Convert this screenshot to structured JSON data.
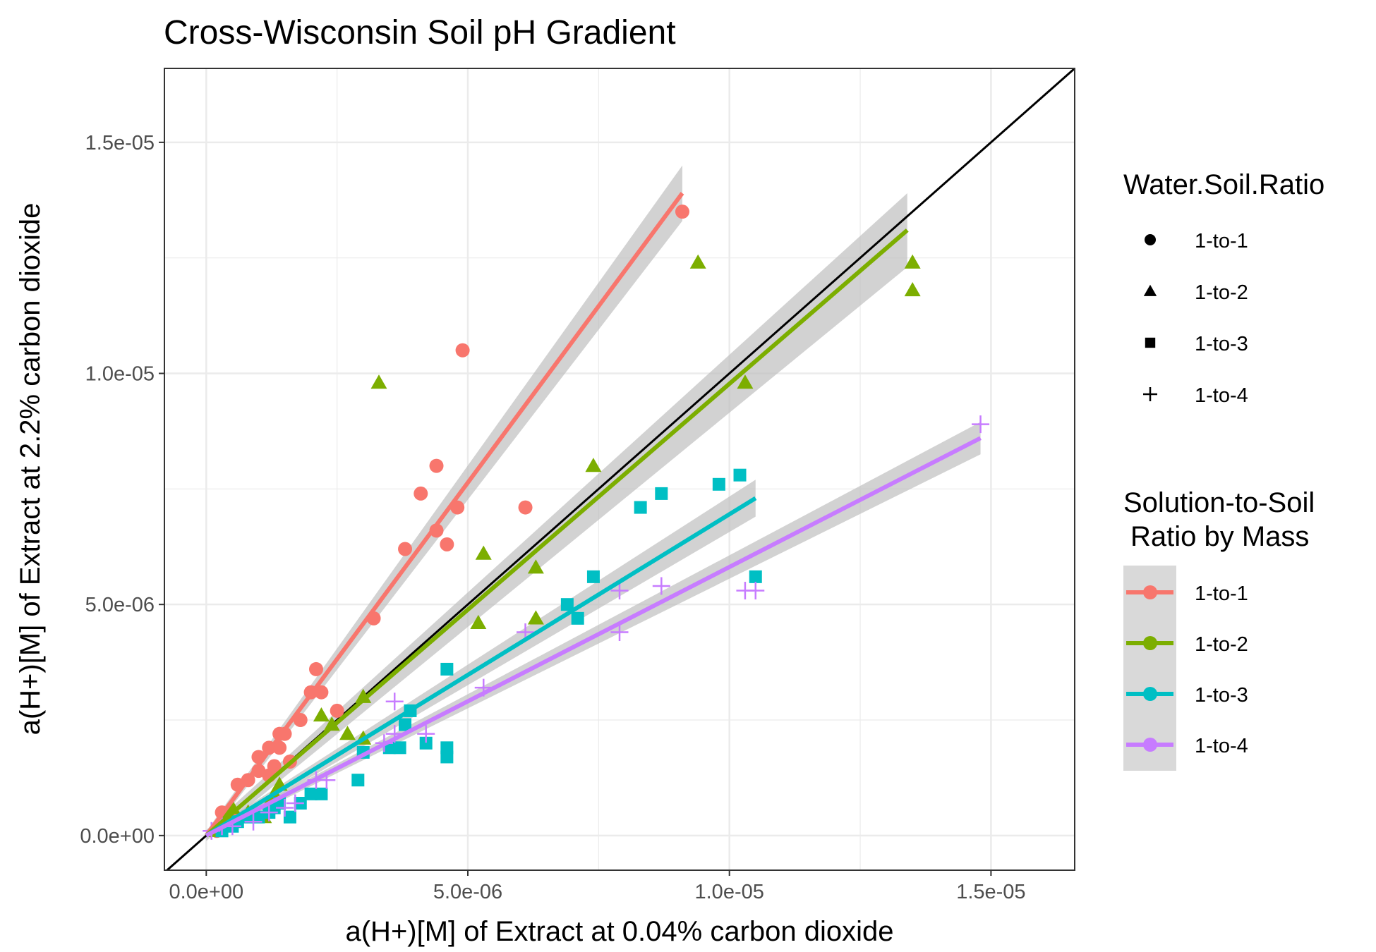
{
  "chart_data": {
    "type": "scatter",
    "title": "Cross-Wisconsin Soil pH Gradient",
    "xlabel": "a(H+)[M] of Extract at 0.04% carbon dioxide",
    "ylabel": "a(H+)[M] of Extract at 2.2% carbon dioxide",
    "xlim": [
      -8e-07,
      1.66e-05
    ],
    "ylim": [
      -7.5e-07,
      1.66e-05
    ],
    "xticks": [
      0,
      5e-06,
      1e-05,
      1.5e-05
    ],
    "yticks": [
      0,
      5e-06,
      1e-05,
      1.5e-05
    ],
    "xtick_labels": [
      "0.0e+00",
      "5.0e-06",
      "1.0e-05",
      "1.5e-05"
    ],
    "ytick_labels": [
      "0.0e+00",
      "5.0e-06",
      "1.0e-05",
      "1.5e-05"
    ],
    "grid": true,
    "reference_line": "y = x",
    "legend_shape_title": "Water.Soil.Ratio",
    "legend_color_title": [
      "Solution-to-Soil",
      "Ratio by Mass"
    ],
    "legend_placement": "right",
    "series": [
      {
        "name": "1-to-1",
        "shape": "circle",
        "color": "#F8766D",
        "fit": {
          "x0": 0,
          "y0": 0,
          "x1": 9.1e-06,
          "y1": 1.39e-05,
          "band": 6e-07
        },
        "points": [
          [
            2e-07,
            1e-07
          ],
          [
            3e-07,
            5e-07
          ],
          [
            5e-07,
            4e-07
          ],
          [
            6e-07,
            1.1e-06
          ],
          [
            8e-07,
            1.2e-06
          ],
          [
            1e-06,
            1.4e-06
          ],
          [
            1e-06,
            1.7e-06
          ],
          [
            1.2e-06,
            1.3e-06
          ],
          [
            1.2e-06,
            1.9e-06
          ],
          [
            1.3e-06,
            1.5e-06
          ],
          [
            1.4e-06,
            1.9e-06
          ],
          [
            1.4e-06,
            2.2e-06
          ],
          [
            1.5e-06,
            2.2e-06
          ],
          [
            1.6e-06,
            1.6e-06
          ],
          [
            1.8e-06,
            2.5e-06
          ],
          [
            2e-06,
            3.1e-06
          ],
          [
            2.1e-06,
            3.6e-06
          ],
          [
            2.2e-06,
            3.1e-06
          ],
          [
            2.5e-06,
            2.7e-06
          ],
          [
            3.2e-06,
            4.7e-06
          ],
          [
            3.8e-06,
            6.2e-06
          ],
          [
            4.1e-06,
            7.4e-06
          ],
          [
            4.4e-06,
            8e-06
          ],
          [
            4.4e-06,
            6.6e-06
          ],
          [
            4.6e-06,
            6.3e-06
          ],
          [
            4.8e-06,
            7.1e-06
          ],
          [
            4.9e-06,
            1.05e-05
          ],
          [
            6.1e-06,
            7.1e-06
          ],
          [
            9.1e-06,
            1.35e-05
          ]
        ]
      },
      {
        "name": "1-to-2",
        "shape": "triangle",
        "color": "#7CAE00",
        "fit": {
          "x0": 0,
          "y0": 0,
          "x1": 1.34e-05,
          "y1": 1.31e-05,
          "band": 8e-07
        },
        "points": [
          [
            2e-07,
            1e-07
          ],
          [
            4e-07,
            4e-07
          ],
          [
            5e-07,
            6e-07
          ],
          [
            8e-07,
            5e-07
          ],
          [
            1.1e-06,
            4e-07
          ],
          [
            1.2e-06,
            7e-07
          ],
          [
            1.3e-06,
            9e-07
          ],
          [
            1.4e-06,
            1.1e-06
          ],
          [
            2.2e-06,
            2.6e-06
          ],
          [
            2.4e-06,
            2.4e-06
          ],
          [
            2.7e-06,
            2.2e-06
          ],
          [
            3e-06,
            2.1e-06
          ],
          [
            3e-06,
            3e-06
          ],
          [
            3.3e-06,
            9.8e-06
          ],
          [
            5.2e-06,
            4.6e-06
          ],
          [
            5.3e-06,
            6.1e-06
          ],
          [
            6.3e-06,
            5.8e-06
          ],
          [
            6.3e-06,
            4.7e-06
          ],
          [
            7.4e-06,
            8e-06
          ],
          [
            9.4e-06,
            1.24e-05
          ],
          [
            1.03e-05,
            9.8e-06
          ],
          [
            1.35e-05,
            1.24e-05
          ],
          [
            1.35e-05,
            1.18e-05
          ]
        ]
      },
      {
        "name": "1-to-3",
        "shape": "square",
        "color": "#00BFC4",
        "fit": {
          "x0": 0,
          "y0": 0,
          "x1": 1.05e-05,
          "y1": 7.3e-06,
          "band": 4e-07
        },
        "points": [
          [
            3e-07,
            1e-07
          ],
          [
            5e-07,
            2e-07
          ],
          [
            6e-07,
            3e-07
          ],
          [
            8e-07,
            4e-07
          ],
          [
            1e-06,
            4e-07
          ],
          [
            1.2e-06,
            5e-07
          ],
          [
            1.3e-06,
            6e-07
          ],
          [
            1.4e-06,
            7e-07
          ],
          [
            1.6e-06,
            4e-07
          ],
          [
            1.8e-06,
            7e-07
          ],
          [
            2e-06,
            9e-07
          ],
          [
            2.2e-06,
            9e-07
          ],
          [
            2.9e-06,
            1.2e-06
          ],
          [
            3e-06,
            1.8e-06
          ],
          [
            3.5e-06,
            1.9e-06
          ],
          [
            3.7e-06,
            1.9e-06
          ],
          [
            3.8e-06,
            2.4e-06
          ],
          [
            3.9e-06,
            2.7e-06
          ],
          [
            4.2e-06,
            2e-06
          ],
          [
            4.6e-06,
            3.6e-06
          ],
          [
            4.6e-06,
            1.9e-06
          ],
          [
            4.6e-06,
            1.7e-06
          ],
          [
            7.4e-06,
            5.6e-06
          ],
          [
            6.9e-06,
            5e-06
          ],
          [
            7.1e-06,
            4.7e-06
          ],
          [
            8.3e-06,
            7.1e-06
          ],
          [
            8.7e-06,
            7.4e-06
          ],
          [
            9.8e-06,
            7.6e-06
          ],
          [
            1.02e-05,
            7.8e-06
          ],
          [
            1.05e-05,
            5.6e-06
          ]
        ]
      },
      {
        "name": "1-to-4",
        "shape": "plus",
        "color": "#C77CFF",
        "fit": {
          "x0": 0,
          "y0": 0,
          "x1": 1.48e-05,
          "y1": 8.6e-06,
          "band": 3.5e-07
        },
        "points": [
          [
            1e-07,
            1e-07
          ],
          [
            3e-07,
            2e-07
          ],
          [
            5e-07,
            2e-07
          ],
          [
            9e-07,
            3e-07
          ],
          [
            1.2e-06,
            5e-07
          ],
          [
            1.5e-06,
            6e-07
          ],
          [
            1.7e-06,
            7e-07
          ],
          [
            2.1e-06,
            1.2e-06
          ],
          [
            2.3e-06,
            1.2e-06
          ],
          [
            3.4e-06,
            2e-06
          ],
          [
            3.6e-06,
            2.2e-06
          ],
          [
            3.6e-06,
            2.9e-06
          ],
          [
            4.2e-06,
            2.2e-06
          ],
          [
            5.3e-06,
            3.2e-06
          ],
          [
            6.1e-06,
            4.4e-06
          ],
          [
            7.9e-06,
            5.3e-06
          ],
          [
            7.9e-06,
            4.4e-06
          ],
          [
            8.7e-06,
            5.4e-06
          ],
          [
            1.03e-05,
            5.3e-06
          ],
          [
            1.05e-05,
            5.3e-06
          ],
          [
            1.48e-05,
            8.9e-06
          ]
        ]
      }
    ]
  }
}
